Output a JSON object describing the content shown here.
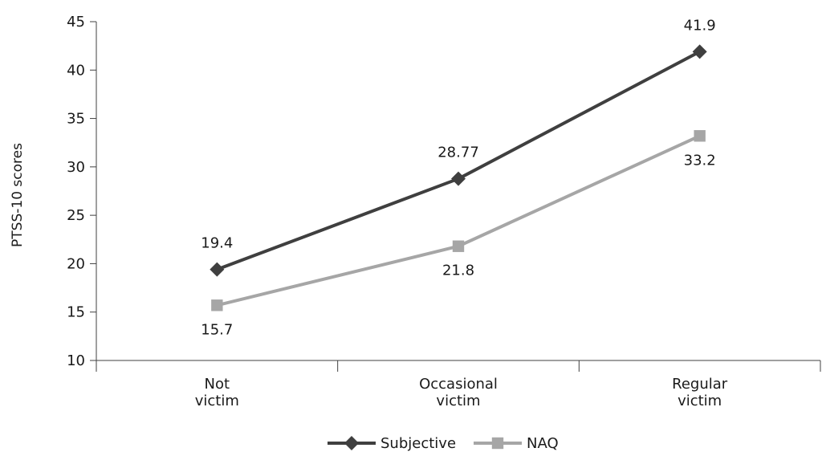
{
  "chart_data": {
    "type": "line",
    "title": "",
    "xlabel": "",
    "ylabel": "PTSS-10 scores",
    "ylim": [
      10,
      45
    ],
    "ytick_step": 5,
    "yticks": [
      "10",
      "15",
      "20",
      "25",
      "30",
      "35",
      "40",
      "45"
    ],
    "categories": [
      [
        "Not",
        "victim"
      ],
      [
        "Occasional",
        "victim"
      ],
      [
        "Regular",
        "victim"
      ]
    ],
    "grid": false,
    "legend_position": "bottom",
    "series": [
      {
        "name": "Subjective",
        "values": [
          19.4,
          28.77,
          41.9
        ],
        "labels": [
          "19.4",
          "28.77",
          "41.9"
        ],
        "label_position": "above",
        "color": "#3f3f3f",
        "marker": "diamond"
      },
      {
        "name": "NAQ",
        "values": [
          15.7,
          21.8,
          33.2
        ],
        "labels": [
          "15.7",
          "21.8",
          "33.2"
        ],
        "label_position": "below",
        "color": "#a6a6a6",
        "marker": "square"
      }
    ]
  }
}
